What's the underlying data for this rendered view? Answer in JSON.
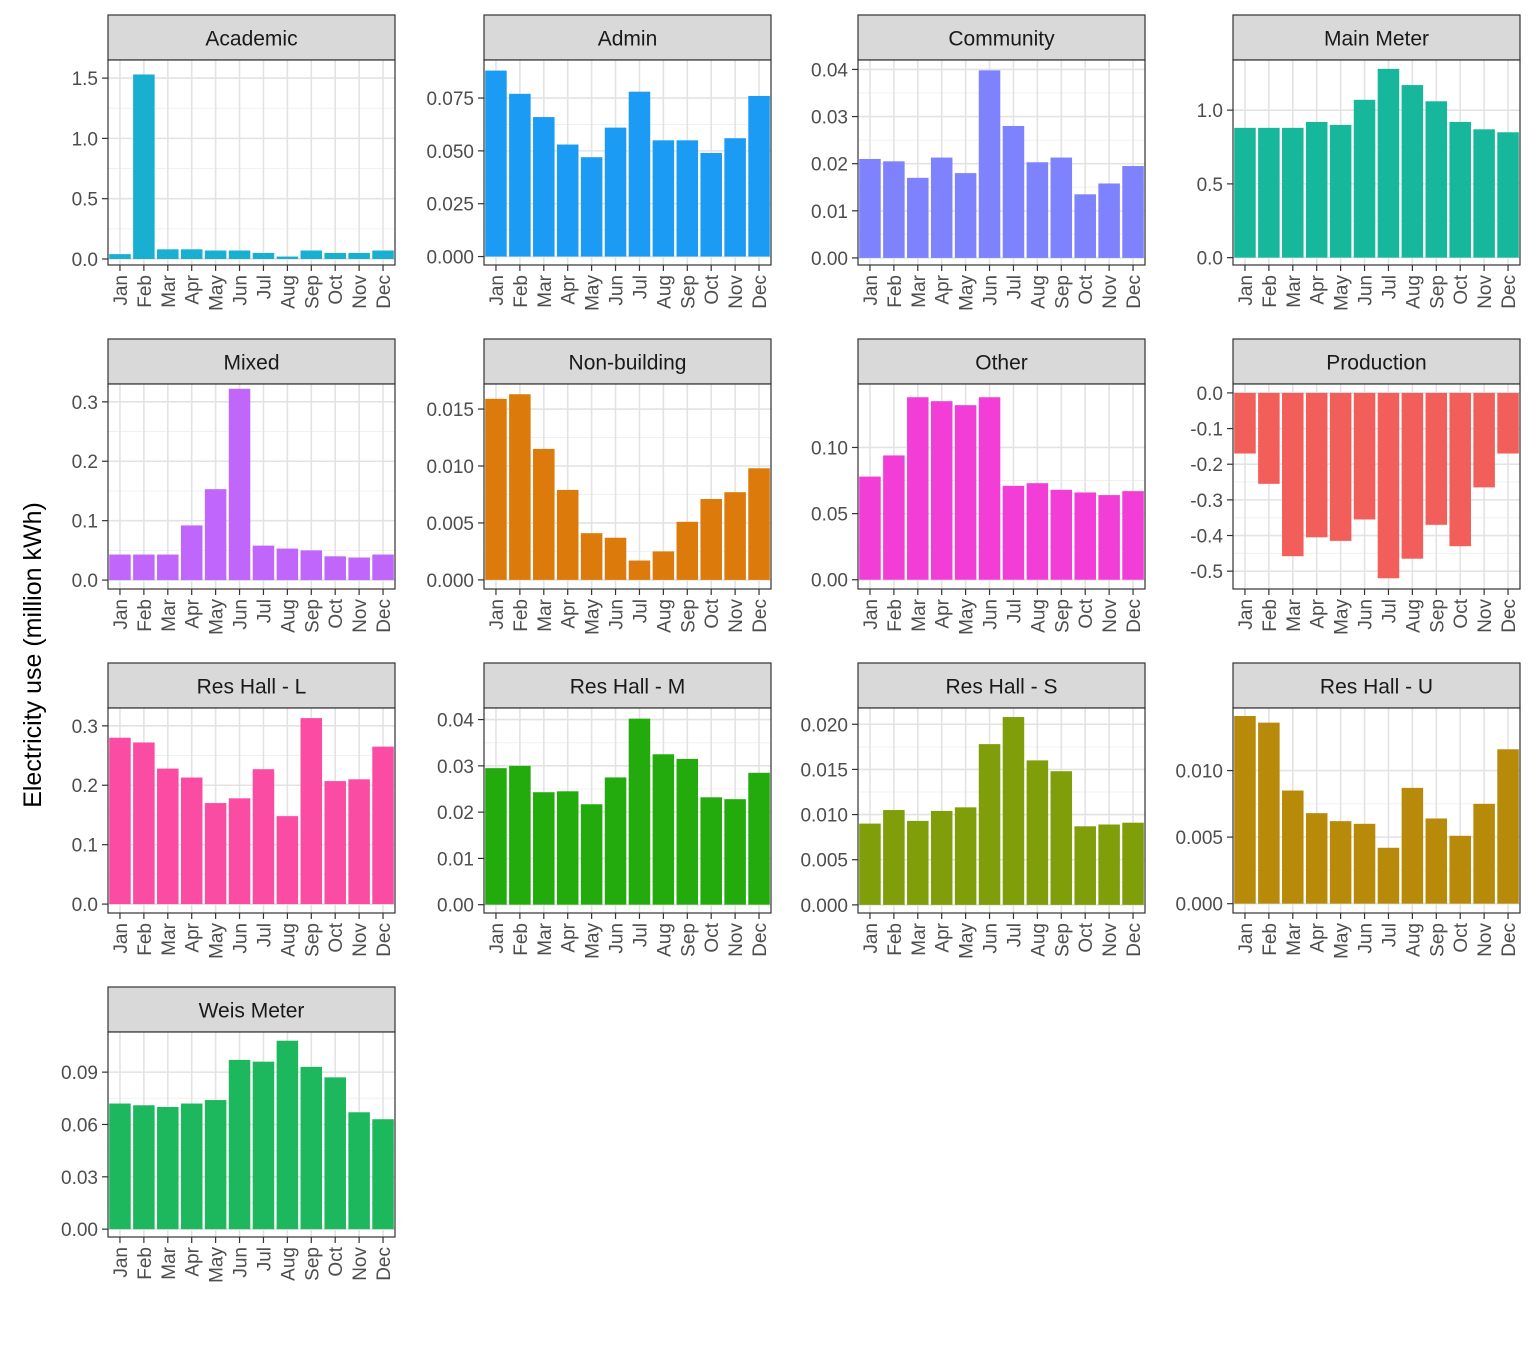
{
  "chart_data": {
    "type": "bar",
    "ylabel": "Electricity use (million kWh)",
    "xlabel": "",
    "categories": [
      "Jan",
      "Feb",
      "Mar",
      "Apr",
      "May",
      "Jun",
      "Jul",
      "Aug",
      "Sep",
      "Oct",
      "Nov",
      "Dec"
    ],
    "grid": true,
    "legend": "none",
    "panels": [
      {
        "name": "Academic",
        "color": "#19AFD0",
        "ylim": [
          -0.05,
          1.65
        ],
        "ticks": [
          0.0,
          0.5,
          1.0,
          1.5
        ],
        "tick_labels": [
          "0.0",
          "0.5",
          "1.0",
          "1.5"
        ],
        "values": [
          0.04,
          1.53,
          0.08,
          0.08,
          0.07,
          0.07,
          0.05,
          0.02,
          0.07,
          0.05,
          0.05,
          0.07
        ]
      },
      {
        "name": "Admin",
        "color": "#1C9BF5",
        "ylim": [
          -0.004,
          0.093
        ],
        "ticks": [
          0.0,
          0.025,
          0.05,
          0.075
        ],
        "tick_labels": [
          "0.000",
          "0.025",
          "0.050",
          "0.075"
        ],
        "values": [
          0.088,
          0.077,
          0.066,
          0.053,
          0.047,
          0.061,
          0.078,
          0.055,
          0.055,
          0.049,
          0.056,
          0.076
        ]
      },
      {
        "name": "Community",
        "color": "#7F82FD",
        "ylim": [
          -0.0015,
          0.042
        ],
        "ticks": [
          0.0,
          0.01,
          0.02,
          0.03,
          0.04
        ],
        "tick_labels": [
          "0.00",
          "0.01",
          "0.02",
          "0.03",
          "0.04"
        ],
        "values": [
          0.021,
          0.0205,
          0.017,
          0.0213,
          0.018,
          0.0398,
          0.028,
          0.0203,
          0.0213,
          0.0135,
          0.0158,
          0.0195
        ]
      },
      {
        "name": "Main Meter",
        "color": "#16B79B",
        "ylim": [
          -0.05,
          1.34
        ],
        "ticks": [
          0.0,
          0.5,
          1.0
        ],
        "tick_labels": [
          "0.0",
          "0.5",
          "1.0"
        ],
        "values": [
          0.88,
          0.88,
          0.88,
          0.92,
          0.9,
          1.07,
          1.28,
          1.17,
          1.06,
          0.92,
          0.87,
          0.85
        ]
      },
      {
        "name": "Mixed",
        "color": "#C066FB",
        "ylim": [
          -0.015,
          0.33
        ],
        "ticks": [
          0.0,
          0.1,
          0.2,
          0.3
        ],
        "tick_labels": [
          "0.0",
          "0.1",
          "0.2",
          "0.3"
        ],
        "values": [
          0.043,
          0.043,
          0.043,
          0.092,
          0.153,
          0.322,
          0.058,
          0.053,
          0.05,
          0.04,
          0.038,
          0.043
        ]
      },
      {
        "name": "Non-building",
        "color": "#DC7A0C",
        "ylim": [
          -0.0008,
          0.0172
        ],
        "ticks": [
          0.0,
          0.005,
          0.01,
          0.015
        ],
        "tick_labels": [
          "0.000",
          "0.005",
          "0.010",
          "0.015"
        ],
        "values": [
          0.0159,
          0.0163,
          0.0115,
          0.0079,
          0.0041,
          0.0037,
          0.0017,
          0.0025,
          0.0051,
          0.0071,
          0.0077,
          0.0098
        ]
      },
      {
        "name": "Other",
        "color": "#F23ED7",
        "ylim": [
          -0.007,
          0.148
        ],
        "ticks": [
          0.0,
          0.05,
          0.1
        ],
        "tick_labels": [
          "0.00",
          "0.05",
          "0.10"
        ],
        "values": [
          0.078,
          0.094,
          0.138,
          0.135,
          0.132,
          0.138,
          0.071,
          0.073,
          0.068,
          0.066,
          0.064,
          0.067
        ]
      },
      {
        "name": "Production",
        "color": "#F25E5A",
        "ylim": [
          -0.55,
          0.025
        ],
        "ticks": [
          0.0,
          -0.1,
          -0.2,
          -0.3,
          -0.4,
          -0.5
        ],
        "tick_labels": [
          "0.0",
          "-0.1",
          "-0.2",
          "-0.3",
          "-0.4",
          "-0.5"
        ],
        "values": [
          -0.17,
          -0.255,
          -0.458,
          -0.405,
          -0.415,
          -0.355,
          -0.52,
          -0.465,
          -0.37,
          -0.43,
          -0.265,
          -0.17
        ]
      },
      {
        "name": "Res Hall - L",
        "color": "#FB4CA3",
        "ylim": [
          -0.015,
          0.33
        ],
        "ticks": [
          0.0,
          0.1,
          0.2,
          0.3
        ],
        "tick_labels": [
          "0.0",
          "0.1",
          "0.2",
          "0.3"
        ],
        "values": [
          0.28,
          0.272,
          0.228,
          0.213,
          0.17,
          0.178,
          0.227,
          0.148,
          0.313,
          0.207,
          0.21,
          0.265
        ]
      },
      {
        "name": "Res Hall - M",
        "color": "#23AA0C",
        "ylim": [
          -0.0018,
          0.0425
        ],
        "ticks": [
          0.0,
          0.01,
          0.02,
          0.03,
          0.04
        ],
        "tick_labels": [
          "0.00",
          "0.01",
          "0.02",
          "0.03",
          "0.04"
        ],
        "values": [
          0.0295,
          0.03,
          0.0243,
          0.0245,
          0.0217,
          0.0275,
          0.0402,
          0.0325,
          0.0315,
          0.0232,
          0.0228,
          0.0285
        ]
      },
      {
        "name": "Res Hall - S",
        "color": "#7F9E0A",
        "ylim": [
          -0.0009,
          0.0218
        ],
        "ticks": [
          0.0,
          0.005,
          0.01,
          0.015,
          0.02
        ],
        "tick_labels": [
          "0.000",
          "0.005",
          "0.010",
          "0.015",
          "0.020"
        ],
        "values": [
          0.009,
          0.0105,
          0.0093,
          0.0104,
          0.0108,
          0.0178,
          0.0208,
          0.016,
          0.0148,
          0.0087,
          0.0089,
          0.0091
        ]
      },
      {
        "name": "Res Hall - U",
        "color": "#B88A0A",
        "ylim": [
          -0.0007,
          0.0147
        ],
        "ticks": [
          0.0,
          0.005,
          0.01
        ],
        "tick_labels": [
          "0.000",
          "0.005",
          "0.010"
        ],
        "values": [
          0.0141,
          0.0136,
          0.0085,
          0.0068,
          0.0062,
          0.006,
          0.0042,
          0.0087,
          0.0064,
          0.0051,
          0.0075,
          0.0116
        ]
      },
      {
        "name": "Weis Meter",
        "color": "#1DB85D",
        "ylim": [
          -0.0045,
          0.113
        ],
        "ticks": [
          0.0,
          0.03,
          0.06,
          0.09
        ],
        "tick_labels": [
          "0.00",
          "0.03",
          "0.06",
          "0.09"
        ],
        "values": [
          0.072,
          0.071,
          0.07,
          0.072,
          0.074,
          0.097,
          0.096,
          0.108,
          0.093,
          0.087,
          0.067,
          0.063
        ]
      }
    ]
  }
}
